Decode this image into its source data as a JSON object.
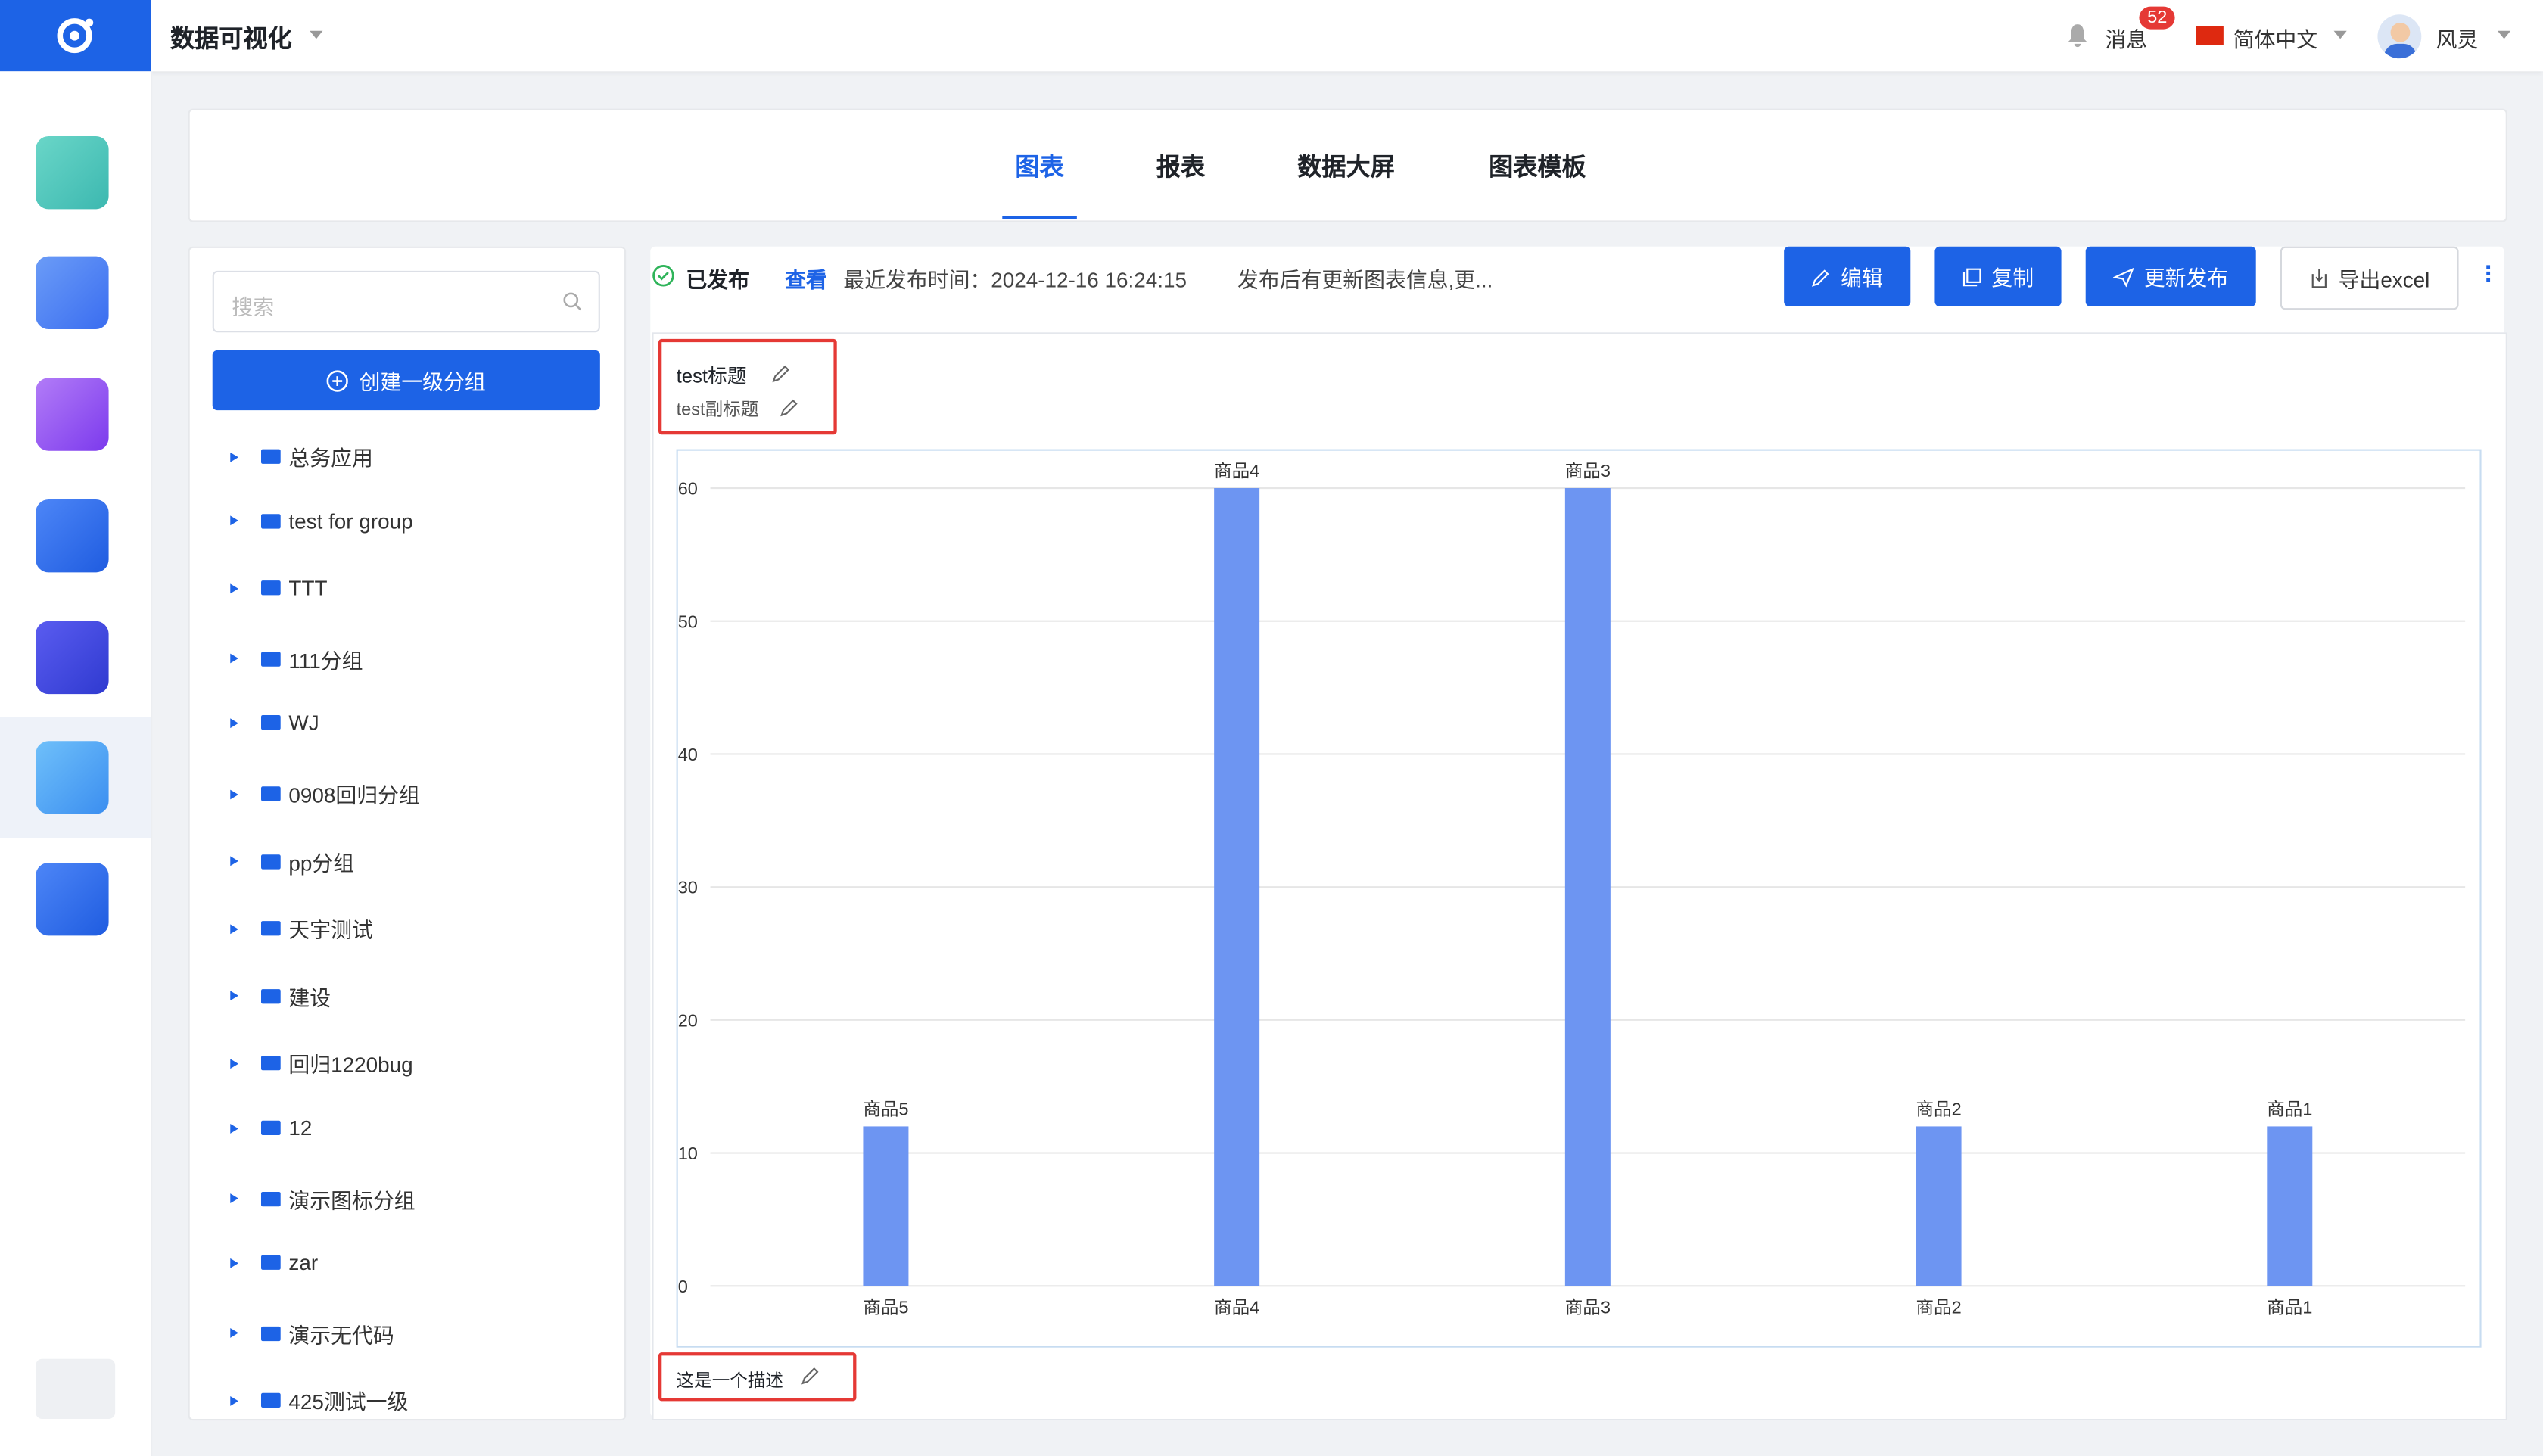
{
  "header": {
    "app_title": "数据可视化",
    "messages": "消息",
    "badge": "52",
    "language": "简体中文",
    "user": "风灵"
  },
  "tabs": [
    "图表",
    "报表",
    "数据大屏",
    "图表模板"
  ],
  "sidebar": {
    "search_placeholder": "搜索",
    "create_button": "创建一级分组",
    "groups": [
      "总务应用",
      "test for group",
      "TTT",
      "111分组",
      "WJ",
      "0908回归分组",
      "pp分组",
      "天宇测试",
      "建设",
      "回归1220bug",
      "12",
      "演示图标分组",
      "zar",
      "演示无代码",
      "425测试一级"
    ]
  },
  "status": {
    "state": "已发布",
    "view": "查看",
    "publish_time": "最近发布时间：2024-12-16 16:24:15",
    "note": "发布后有更新图表信息,更..."
  },
  "actions": [
    "编辑",
    "复制",
    "更新发布",
    "导出excel"
  ],
  "chart_data": {
    "type": "bar",
    "title": "test标题",
    "subtitle": "test副标题",
    "description": "这是一个描述",
    "categories": [
      "商品5",
      "商品4",
      "商品3",
      "商品2",
      "商品1"
    ],
    "values": [
      12,
      60,
      60,
      12,
      12
    ],
    "color": "#6d95f2",
    "ylim": [
      0,
      60
    ],
    "yticks": [
      0,
      10,
      20,
      30,
      40,
      50,
      60
    ],
    "grid": true
  }
}
